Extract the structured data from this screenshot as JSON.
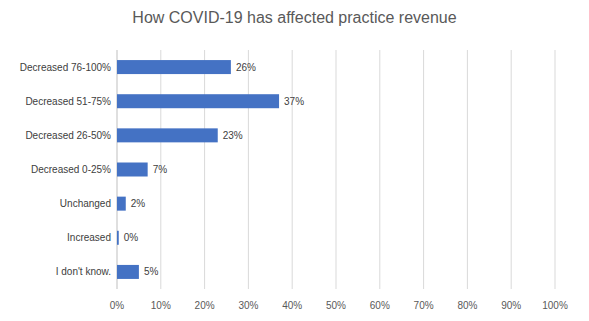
{
  "chart_data": {
    "type": "bar",
    "orientation": "horizontal",
    "title": "How COVID-19 has affected practice revenue",
    "categories": [
      "Decreased 76-100%",
      "Decreased 51-75%",
      "Decreased 26-50%",
      "Decreased 0-25%",
      "Unchanged",
      "Increased",
      "I don't know."
    ],
    "values": [
      26,
      37,
      23,
      7,
      2,
      0.4,
      5
    ],
    "value_labels": [
      "26%",
      "37%",
      "23%",
      "7%",
      "2%",
      "0%",
      "5%"
    ],
    "data_labels": true,
    "color": "#4472c4",
    "xlim": [
      0,
      100
    ],
    "xticks": [
      {
        "value": 0,
        "label": "0%"
      },
      {
        "value": 10,
        "label": "10%"
      },
      {
        "value": 20,
        "label": "20%"
      },
      {
        "value": 30,
        "label": "30%"
      },
      {
        "value": 40,
        "label": "40%"
      },
      {
        "value": 50,
        "label": "50%"
      },
      {
        "value": 60,
        "label": "60%"
      },
      {
        "value": 70,
        "label": "70%"
      },
      {
        "value": 80,
        "label": "80%"
      },
      {
        "value": 90,
        "label": "90%"
      },
      {
        "value": 100,
        "label": "100%"
      }
    ],
    "grid": true
  }
}
